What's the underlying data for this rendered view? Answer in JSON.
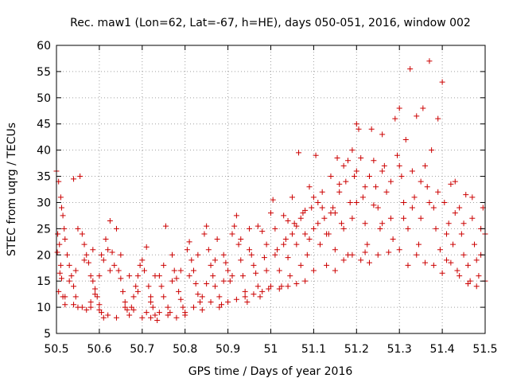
{
  "chart_data": {
    "type": "scatter",
    "title": "Rec. maw1 (Lon=62, Lat=-67, h=HE), days 050-051, 2016, window 002",
    "xlabel": "GPS time / Days of year 2016",
    "ylabel": "STEC from uqrg / TECUs",
    "xlim": [
      50.5,
      51.5
    ],
    "ylim": [
      5,
      60
    ],
    "xticks": [
      50.5,
      50.6,
      50.7,
      50.8,
      50.9,
      51,
      51.1,
      51.2,
      51.3,
      51.4,
      51.5
    ],
    "xtick_labels": [
      "50.5",
      "50.6",
      "50.7",
      "50.8",
      "50.9",
      "51",
      "51.1",
      "51.2",
      "51.3",
      "51.4",
      "51.5"
    ],
    "yticks": [
      5,
      10,
      15,
      20,
      25,
      30,
      35,
      40,
      45,
      50,
      55,
      60
    ],
    "ytick_labels": [
      "5",
      "10",
      "15",
      "20",
      "25",
      "30",
      "35",
      "40",
      "45",
      "50",
      "55",
      "60"
    ],
    "grid": true,
    "marker": "plus",
    "color": "#cc0000",
    "points": [
      [
        50.5,
        36.0
      ],
      [
        50.505,
        34.0
      ],
      [
        50.51,
        31.0
      ],
      [
        50.512,
        29.0
      ],
      [
        50.515,
        27.5
      ],
      [
        50.518,
        25.0
      ],
      [
        50.52,
        23.0
      ],
      [
        50.503,
        24.0
      ],
      [
        50.507,
        22.0
      ],
      [
        50.502,
        20.5
      ],
      [
        50.51,
        18.0
      ],
      [
        50.508,
        16.5
      ],
      [
        50.512,
        15.5
      ],
      [
        50.505,
        13.0
      ],
      [
        50.515,
        12.0
      ],
      [
        50.52,
        10.5
      ],
      [
        50.525,
        20.0
      ],
      [
        50.53,
        18.0
      ],
      [
        50.535,
        16.0
      ],
      [
        50.54,
        14.0
      ],
      [
        50.545,
        12.0
      ],
      [
        50.55,
        10.0
      ],
      [
        50.54,
        34.5
      ],
      [
        50.555,
        35.0
      ],
      [
        50.55,
        25.0
      ],
      [
        50.56,
        24.0
      ],
      [
        50.565,
        22.0
      ],
      [
        50.57,
        20.0
      ],
      [
        50.575,
        18.5
      ],
      [
        50.58,
        16.0
      ],
      [
        50.585,
        15.0
      ],
      [
        50.59,
        13.5
      ],
      [
        50.595,
        12.0
      ],
      [
        50.6,
        10.5
      ],
      [
        50.605,
        9.0
      ],
      [
        50.61,
        8.0
      ],
      [
        50.56,
        10.0
      ],
      [
        50.57,
        9.5
      ],
      [
        50.58,
        11.0
      ],
      [
        50.59,
        12.5
      ],
      [
        50.6,
        16.0
      ],
      [
        50.61,
        19.0
      ],
      [
        50.615,
        23.0
      ],
      [
        50.62,
        21.0
      ],
      [
        50.625,
        26.5
      ],
      [
        50.63,
        20.5
      ],
      [
        50.635,
        18.0
      ],
      [
        50.64,
        25.0
      ],
      [
        50.645,
        17.0
      ],
      [
        50.65,
        15.5
      ],
      [
        50.655,
        13.0
      ],
      [
        50.66,
        11.0
      ],
      [
        50.665,
        9.5
      ],
      [
        50.67,
        8.5
      ],
      [
        50.675,
        10.0
      ],
      [
        50.68,
        12.0
      ],
      [
        50.685,
        14.0
      ],
      [
        50.69,
        16.0
      ],
      [
        50.695,
        18.0
      ],
      [
        50.7,
        19.0
      ],
      [
        50.705,
        17.0
      ],
      [
        50.71,
        21.5
      ],
      [
        50.715,
        14.0
      ],
      [
        50.72,
        12.0
      ],
      [
        50.725,
        10.0
      ],
      [
        50.73,
        8.5
      ],
      [
        50.735,
        7.5
      ],
      [
        50.7,
        8.0
      ],
      [
        50.71,
        9.0
      ],
      [
        50.72,
        11.0
      ],
      [
        50.74,
        16.0
      ],
      [
        50.745,
        14.0
      ],
      [
        50.75,
        12.0
      ],
      [
        50.755,
        25.5
      ],
      [
        50.76,
        10.0
      ],
      [
        50.765,
        9.0
      ],
      [
        50.77,
        20.0
      ],
      [
        50.775,
        17.0
      ],
      [
        50.78,
        15.5
      ],
      [
        50.785,
        13.0
      ],
      [
        50.79,
        11.5
      ],
      [
        50.795,
        10.0
      ],
      [
        50.8,
        9.0
      ],
      [
        50.805,
        21.0
      ],
      [
        50.81,
        22.5
      ],
      [
        50.815,
        19.0
      ],
      [
        50.82,
        17.0
      ],
      [
        50.825,
        14.5
      ],
      [
        50.83,
        12.5
      ],
      [
        50.835,
        11.0
      ],
      [
        50.84,
        9.5
      ],
      [
        50.845,
        24.0
      ],
      [
        50.85,
        25.5
      ],
      [
        50.855,
        21.0
      ],
      [
        50.86,
        18.0
      ],
      [
        50.865,
        16.0
      ],
      [
        50.87,
        14.0
      ],
      [
        50.875,
        23.0
      ],
      [
        50.88,
        12.0
      ],
      [
        50.885,
        10.5
      ],
      [
        50.89,
        20.0
      ],
      [
        50.895,
        18.5
      ],
      [
        50.9,
        17.0
      ],
      [
        50.905,
        15.0
      ],
      [
        50.91,
        24.0
      ],
      [
        50.915,
        25.5
      ],
      [
        50.92,
        27.5
      ],
      [
        50.925,
        22.0
      ],
      [
        50.93,
        19.0
      ],
      [
        50.935,
        16.0
      ],
      [
        50.94,
        13.0
      ],
      [
        50.945,
        11.0
      ],
      [
        50.95,
        25.0
      ],
      [
        50.955,
        20.0
      ],
      [
        50.96,
        18.0
      ],
      [
        50.965,
        16.5
      ],
      [
        50.97,
        14.0
      ],
      [
        50.975,
        12.0
      ],
      [
        50.98,
        24.5
      ],
      [
        50.985,
        19.5
      ],
      [
        50.99,
        22.0
      ],
      [
        50.995,
        13.5
      ],
      [
        51.0,
        28.0
      ],
      [
        51.005,
        30.5
      ],
      [
        51.01,
        25.0
      ],
      [
        51.015,
        21.0
      ],
      [
        51.02,
        17.0
      ],
      [
        51.025,
        14.0
      ],
      [
        51.03,
        27.5
      ],
      [
        51.035,
        23.0
      ],
      [
        51.04,
        19.5
      ],
      [
        51.045,
        16.0
      ],
      [
        51.05,
        31.0
      ],
      [
        51.055,
        26.0
      ],
      [
        51.06,
        22.0
      ],
      [
        51.065,
        39.5
      ],
      [
        51.07,
        18.0
      ],
      [
        51.075,
        28.0
      ],
      [
        51.08,
        24.0
      ],
      [
        51.085,
        20.0
      ],
      [
        51.09,
        33.0
      ],
      [
        51.095,
        29.0
      ],
      [
        51.1,
        25.0
      ],
      [
        51.105,
        39.0
      ],
      [
        51.11,
        30.0
      ],
      [
        51.115,
        22.0
      ],
      [
        51.12,
        32.0
      ],
      [
        51.125,
        27.0
      ],
      [
        51.13,
        18.0
      ],
      [
        51.135,
        24.0
      ],
      [
        51.14,
        35.0
      ],
      [
        51.145,
        29.0
      ],
      [
        51.15,
        21.0
      ],
      [
        51.155,
        38.5
      ],
      [
        51.16,
        32.0
      ],
      [
        51.165,
        26.0
      ],
      [
        51.17,
        37.0
      ],
      [
        51.175,
        34.0
      ],
      [
        51.18,
        20.0
      ],
      [
        51.185,
        30.0
      ],
      [
        51.19,
        40.0
      ],
      [
        51.195,
        35.0
      ],
      [
        51.2,
        45.0
      ],
      [
        51.205,
        44.0
      ],
      [
        51.21,
        38.5
      ],
      [
        51.215,
        31.0
      ],
      [
        51.22,
        26.0
      ],
      [
        51.225,
        22.0
      ],
      [
        51.23,
        18.5
      ],
      [
        51.235,
        44.0
      ],
      [
        51.24,
        38.0
      ],
      [
        51.245,
        33.0
      ],
      [
        51.25,
        29.0
      ],
      [
        51.255,
        25.0
      ],
      [
        51.26,
        43.0
      ],
      [
        51.265,
        37.0
      ],
      [
        51.27,
        32.0
      ],
      [
        51.275,
        20.5
      ],
      [
        51.28,
        27.0
      ],
      [
        51.285,
        23.0
      ],
      [
        51.29,
        46.0
      ],
      [
        51.295,
        39.0
      ],
      [
        51.3,
        48.0
      ],
      [
        51.305,
        35.0
      ],
      [
        51.31,
        30.0
      ],
      [
        51.315,
        42.0
      ],
      [
        51.32,
        25.0
      ],
      [
        51.325,
        55.5
      ],
      [
        51.33,
        36.0
      ],
      [
        51.335,
        31.0
      ],
      [
        51.34,
        46.5
      ],
      [
        51.345,
        22.0
      ],
      [
        51.35,
        27.0
      ],
      [
        51.355,
        48.0
      ],
      [
        51.36,
        37.0
      ],
      [
        51.365,
        33.0
      ],
      [
        51.37,
        57.0
      ],
      [
        51.375,
        40.0
      ],
      [
        51.38,
        29.0
      ],
      [
        51.385,
        25.0
      ],
      [
        51.39,
        46.0
      ],
      [
        51.395,
        21.0
      ],
      [
        51.4,
        53.0
      ],
      [
        51.405,
        30.0
      ],
      [
        51.41,
        19.0
      ],
      [
        51.415,
        26.0
      ],
      [
        51.42,
        33.5
      ],
      [
        51.425,
        22.0
      ],
      [
        51.43,
        34.0
      ],
      [
        51.435,
        17.0
      ],
      [
        51.44,
        29.0
      ],
      [
        51.445,
        24.0
      ],
      [
        51.45,
        20.0
      ],
      [
        51.455,
        31.5
      ],
      [
        51.46,
        18.0
      ],
      [
        51.465,
        15.0
      ],
      [
        51.47,
        27.0
      ],
      [
        51.475,
        22.0
      ],
      [
        51.48,
        19.0
      ],
      [
        51.485,
        16.0
      ],
      [
        51.49,
        25.0
      ],
      [
        51.495,
        29.0
      ],
      [
        51.5,
        15.0
      ],
      [
        51.21,
        19.0
      ],
      [
        51.22,
        20.5
      ],
      [
        51.25,
        20.0
      ],
      [
        51.3,
        21.0
      ],
      [
        51.32,
        18.0
      ],
      [
        51.34,
        20.0
      ],
      [
        51.36,
        18.5
      ],
      [
        51.38,
        18.0
      ],
      [
        51.4,
        16.5
      ],
      [
        51.42,
        18.5
      ],
      [
        51.44,
        16.0
      ],
      [
        51.46,
        14.5
      ],
      [
        51.48,
        14.0
      ],
      [
        51.15,
        17.0
      ],
      [
        51.17,
        19.0
      ],
      [
        51.19,
        20.0
      ],
      [
        51.1,
        17.0
      ],
      [
        51.08,
        15.0
      ],
      [
        51.06,
        14.5
      ],
      [
        51.04,
        14.0
      ],
      [
        51.02,
        13.5
      ],
      [
        51.0,
        14.0
      ],
      [
        50.98,
        13.0
      ],
      [
        50.96,
        12.5
      ],
      [
        50.94,
        12.0
      ],
      [
        50.92,
        11.5
      ],
      [
        50.9,
        11.0
      ],
      [
        50.88,
        10.0
      ],
      [
        50.86,
        11.0
      ],
      [
        50.84,
        12.0
      ],
      [
        50.82,
        10.0
      ],
      [
        50.8,
        8.5
      ],
      [
        50.78,
        8.0
      ],
      [
        50.76,
        8.5
      ],
      [
        50.74,
        9.0
      ],
      [
        50.72,
        8.0
      ],
      [
        50.68,
        9.5
      ],
      [
        50.66,
        10.0
      ],
      [
        50.64,
        8.0
      ],
      [
        50.62,
        8.5
      ],
      [
        50.6,
        9.5
      ],
      [
        50.58,
        10.0
      ],
      [
        50.54,
        10.5
      ],
      [
        50.52,
        12.0
      ],
      [
        50.53,
        15.0
      ],
      [
        50.545,
        17.0
      ],
      [
        50.565,
        19.0
      ],
      [
        50.585,
        21.0
      ],
      [
        50.605,
        20.0
      ],
      [
        50.625,
        17.0
      ],
      [
        50.65,
        20.0
      ],
      [
        50.67,
        16.0
      ],
      [
        50.69,
        13.0
      ],
      [
        50.73,
        16.0
      ],
      [
        50.75,
        18.0
      ],
      [
        50.77,
        15.0
      ],
      [
        50.79,
        17.0
      ],
      [
        50.81,
        16.0
      ],
      [
        50.83,
        20.0
      ],
      [
        50.85,
        14.5
      ],
      [
        50.87,
        19.0
      ],
      [
        50.89,
        15.0
      ],
      [
        50.91,
        16.0
      ],
      [
        50.93,
        23.0
      ],
      [
        50.95,
        21.0
      ],
      [
        50.97,
        25.5
      ],
      [
        50.99,
        17.0
      ],
      [
        51.01,
        20.0
      ],
      [
        51.03,
        22.0
      ],
      [
        51.05,
        24.0
      ],
      [
        51.07,
        27.0
      ],
      [
        51.09,
        23.0
      ],
      [
        51.11,
        26.0
      ],
      [
        51.13,
        24.0
      ],
      [
        51.15,
        28.0
      ],
      [
        51.17,
        25.0
      ],
      [
        51.19,
        27.0
      ],
      [
        51.2,
        30.0
      ],
      [
        51.23,
        35.0
      ],
      [
        51.26,
        36.0
      ],
      [
        51.28,
        34.0
      ],
      [
        51.3,
        37.0
      ],
      [
        51.31,
        27.0
      ],
      [
        51.33,
        29.0
      ],
      [
        51.35,
        34.0
      ],
      [
        51.37,
        30.0
      ],
      [
        51.39,
        32.0
      ],
      [
        51.41,
        24.0
      ],
      [
        51.43,
        28.0
      ],
      [
        51.45,
        26.0
      ],
      [
        51.47,
        31.0
      ],
      [
        51.49,
        20.0
      ],
      [
        51.5,
        24.0
      ],
      [
        51.26,
        26.0
      ],
      [
        51.24,
        29.5
      ],
      [
        51.22,
        33.0
      ],
      [
        51.2,
        36.0
      ],
      [
        51.18,
        38.0
      ],
      [
        51.16,
        33.5
      ],
      [
        51.14,
        28.0
      ],
      [
        51.12,
        29.0
      ],
      [
        51.1,
        31.0
      ],
      [
        51.08,
        28.5
      ],
      [
        51.06,
        25.5
      ],
      [
        51.04,
        26.5
      ]
    ]
  }
}
